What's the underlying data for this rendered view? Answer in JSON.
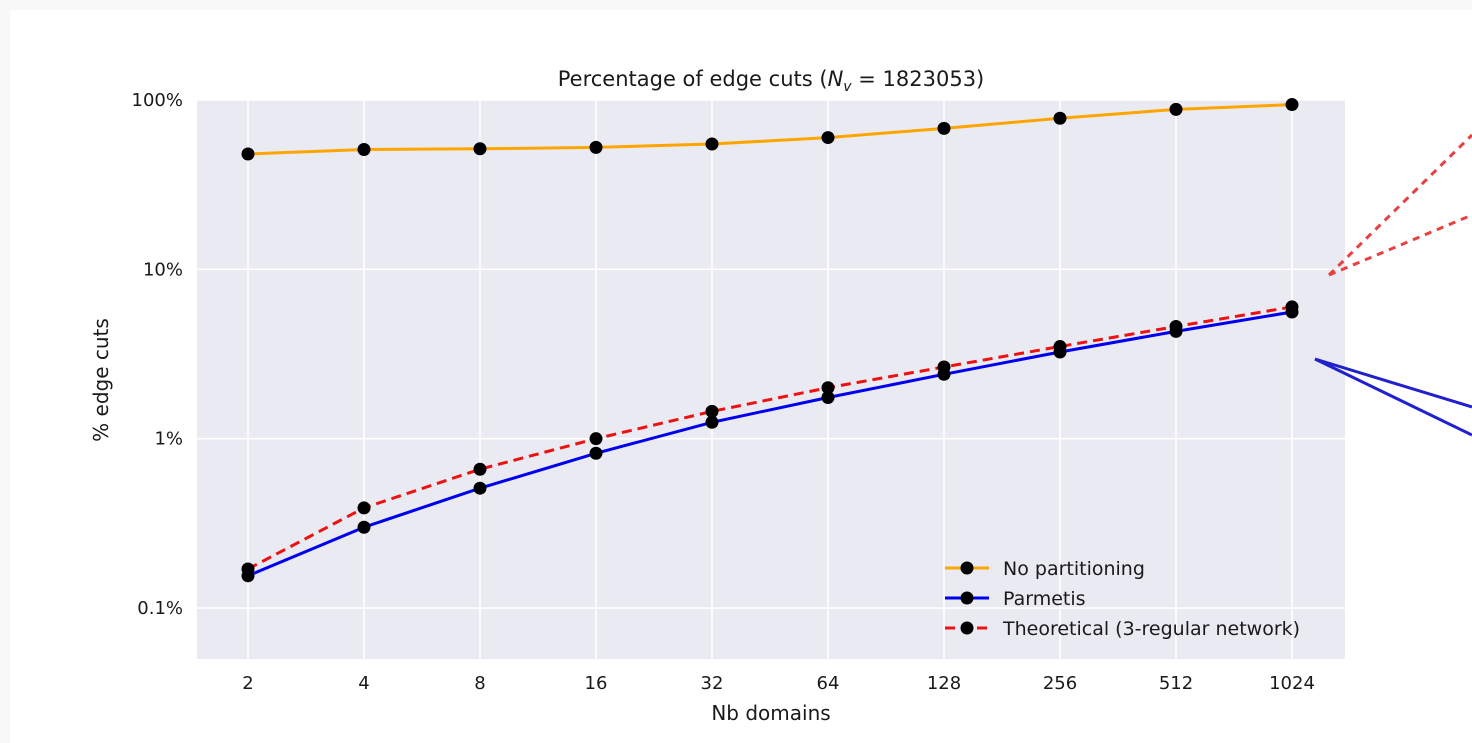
{
  "chart_data": {
    "type": "line",
    "title_prefix": "Percentage of edge cuts (",
    "title_var": "N",
    "title_sub": "v",
    "title_suffix": " = 1823053)",
    "xlabel": "Nb domains",
    "ylabel": "% edge cuts",
    "yscale": "log",
    "ylim": [
      0.05,
      100
    ],
    "y_ticks": [
      0.1,
      1,
      10,
      100
    ],
    "y_tick_labels": [
      "0.1%",
      "1%",
      "10%",
      "100%"
    ],
    "categories": [
      "2",
      "4",
      "8",
      "16",
      "32",
      "64",
      "128",
      "256",
      "512",
      "1024"
    ],
    "grid": true,
    "legend_position": "lower-right",
    "series": [
      {
        "name": "No partitioning",
        "color": "#ffa500",
        "style": "solid",
        "values": [
          48,
          51,
          51.5,
          52.5,
          55,
          60,
          68,
          78,
          88,
          94
        ]
      },
      {
        "name": "Parmetis",
        "color": "#0000ee",
        "style": "solid",
        "values": [
          0.155,
          0.3,
          0.51,
          0.82,
          1.25,
          1.75,
          2.4,
          3.25,
          4.3,
          5.6
        ]
      },
      {
        "name": "Theoretical (3-regular network)",
        "color": "#ee1111",
        "style": "dashed",
        "values": [
          0.17,
          0.39,
          0.66,
          1.0,
          1.45,
          2.0,
          2.65,
          3.5,
          4.6,
          6.0
        ]
      }
    ]
  }
}
